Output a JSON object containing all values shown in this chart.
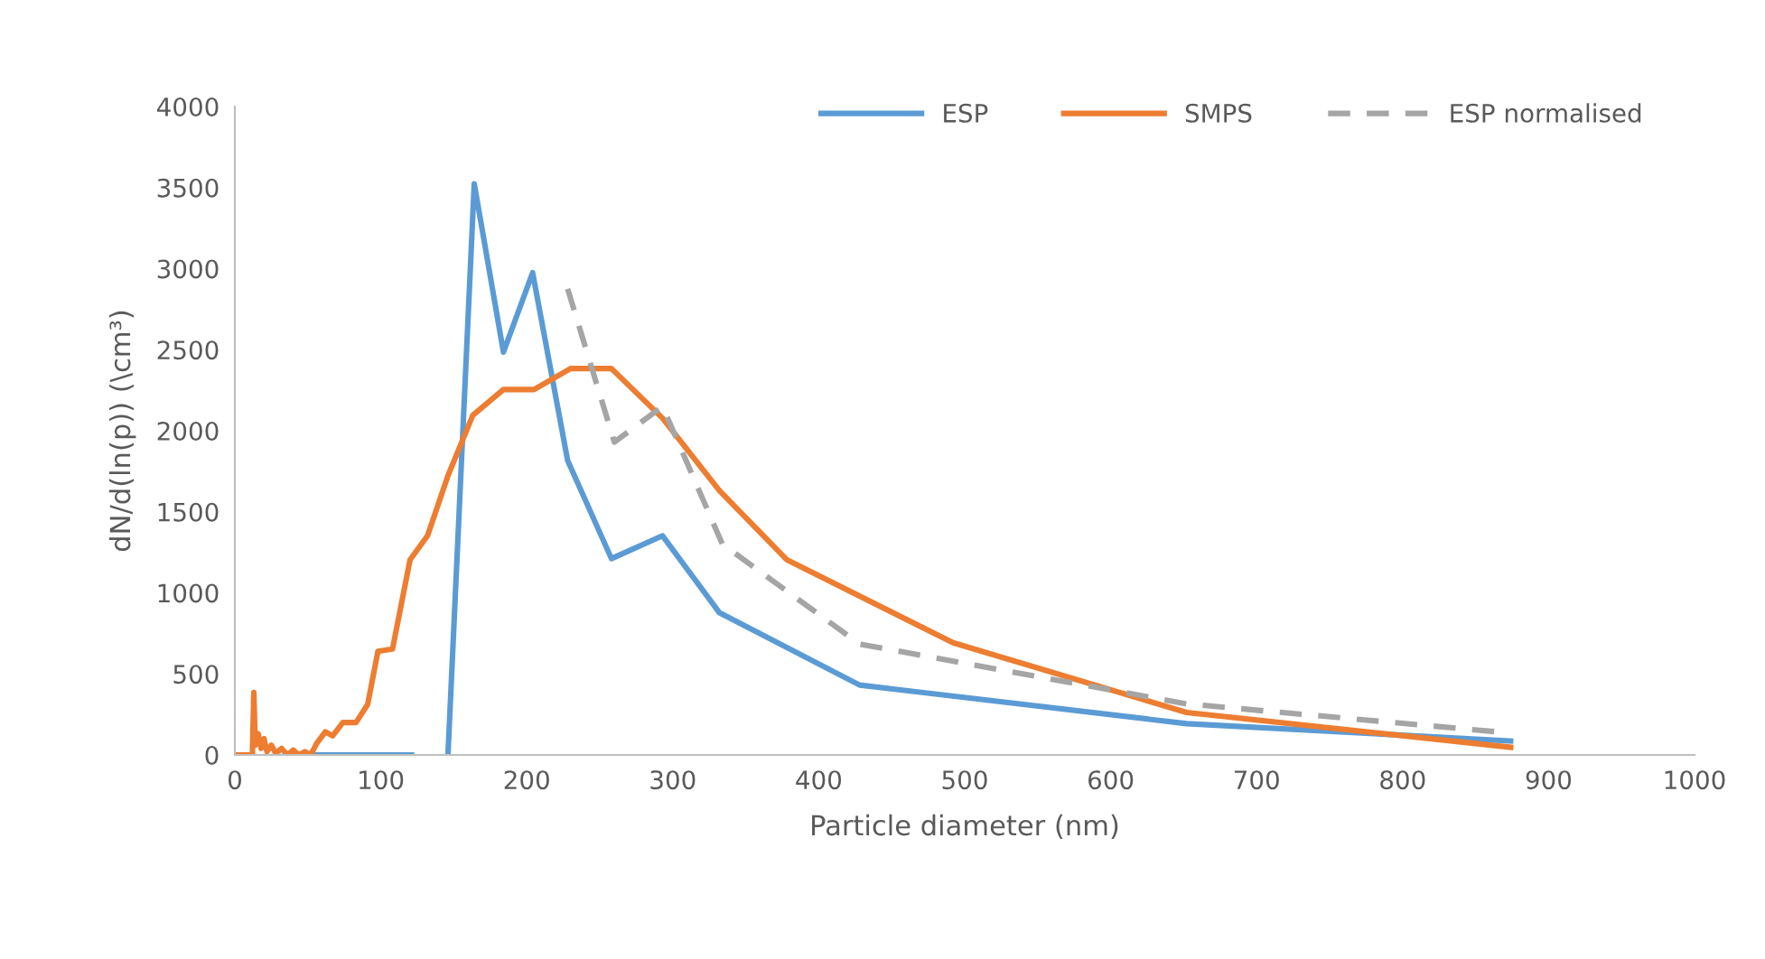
{
  "chart_data": {
    "type": "line",
    "xlabel": "Particle diameter (nm)",
    "ylabel": "dN/d(ln(p)) (\\cm³)",
    "xlim": [
      0,
      1000
    ],
    "xticks": [
      0,
      100,
      200,
      300,
      400,
      500,
      600,
      700,
      800,
      900,
      1000
    ],
    "ylim": [
      0,
      4000
    ],
    "yticks": [
      0,
      500,
      1000,
      1500,
      2000,
      2500,
      3000,
      3500,
      4000
    ],
    "grid": false,
    "legend": "top right",
    "marker": "none",
    "series": [
      {
        "name": "ESP",
        "color": "#5b9bd5",
        "line_style": "solid",
        "x": [
          55,
          121,
          133,
          146,
          164,
          184,
          204,
          228,
          258,
          293,
          332,
          428,
          652,
          874
        ],
        "values": [
          0,
          0,
          null,
          0,
          3524,
          2485,
          2975,
          1816,
          1211,
          1352,
          877,
          431,
          193,
          86
        ]
      },
      {
        "name": "SMPS",
        "color": "#ed7d31",
        "line_style": "solid",
        "x": [
          0,
          10,
          12,
          13,
          14,
          16,
          18,
          20,
          22,
          25,
          28,
          32,
          36,
          40,
          44,
          48,
          52,
          56,
          62,
          67,
          74,
          83,
          91,
          98,
          108,
          120,
          132,
          146,
          163,
          184,
          205,
          230,
          258,
          293,
          332,
          378,
          492,
          652,
          874
        ],
        "values": [
          0,
          0,
          0,
          386,
          60,
          130,
          40,
          100,
          20,
          60,
          10,
          40,
          0,
          30,
          0,
          20,
          0,
          70,
          143,
          118,
          200,
          200,
          312,
          639,
          653,
          1203,
          1352,
          1723,
          2095,
          2254,
          2254,
          2384,
          2384,
          2077,
          1630,
          1205,
          692,
          262,
          47
        ]
      },
      {
        "name": "ESP normalised",
        "color": "#a5a5a5",
        "line_style": "dashed",
        "x": [
          228,
          260,
          293,
          334,
          428,
          652,
          874
        ],
        "values": [
          2875,
          1930,
          2150,
          1300,
          684,
          315,
          135
        ]
      }
    ]
  }
}
